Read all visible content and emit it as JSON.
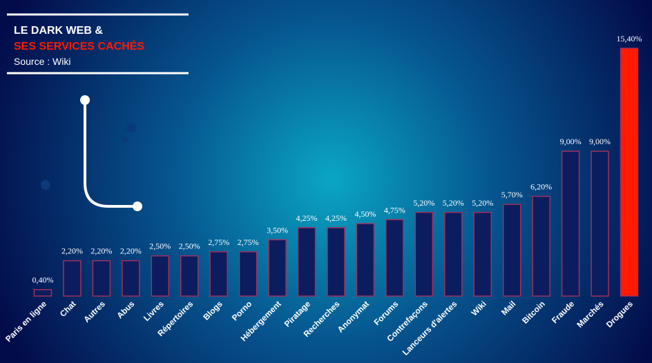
{
  "chart_data": {
    "type": "bar",
    "title": "LE DARK WEB &",
    "subtitle": "SES SERVICES CACHÉS",
    "source": "Source : Wiki",
    "categories": [
      "Paris en ligne",
      "Chat",
      "Autres",
      "Abus",
      "Livres",
      "Répertoires",
      "Blogs",
      "Porno",
      "Hébergement",
      "Piratage",
      "Recherches",
      "Anonymat",
      "Forums",
      "Contrefaçons",
      "Lanceurs d'alertes",
      "Wiki",
      "Mail",
      "Bitcoin",
      "Fraude",
      "Marchés",
      "Drogues"
    ],
    "values": [
      0.4,
      2.2,
      2.2,
      2.2,
      2.5,
      2.5,
      2.75,
      2.75,
      3.5,
      4.25,
      4.25,
      4.5,
      4.75,
      5.2,
      5.2,
      5.2,
      5.7,
      6.2,
      9.0,
      9.0,
      15.4
    ],
    "value_labels": [
      "0,40%",
      "2,20%",
      "2,20%",
      "2,20%",
      "2,50%",
      "2,50%",
      "2,75%",
      "2,75%",
      "3,50%",
      "4,25%",
      "4,25%",
      "4,50%",
      "4,75%",
      "5,20%",
      "5,20%",
      "5,20%",
      "5,70%",
      "6,20%",
      "9,00%",
      "9,00%",
      "15,40%"
    ],
    "edge_color": "#a0305c",
    "fill_colors": [
      "#0b1d5e",
      "#0b1d5e",
      "#0b1d5e",
      "#0b1d5e",
      "#0b1d5e",
      "#0b1d5e",
      "#0b1d5e",
      "#0b1d5e",
      "#0b1d5e",
      "#0b1d5e",
      "#0b1d5e",
      "#0b1d5e",
      "#0b1d5e",
      "#0b1d5e",
      "#0b1d5e",
      "#0b1d5e",
      "#0b1d5e",
      "#0b1d5e",
      "#0b1d5e",
      "#0b1d5e",
      "#ff1a00"
    ]
  }
}
